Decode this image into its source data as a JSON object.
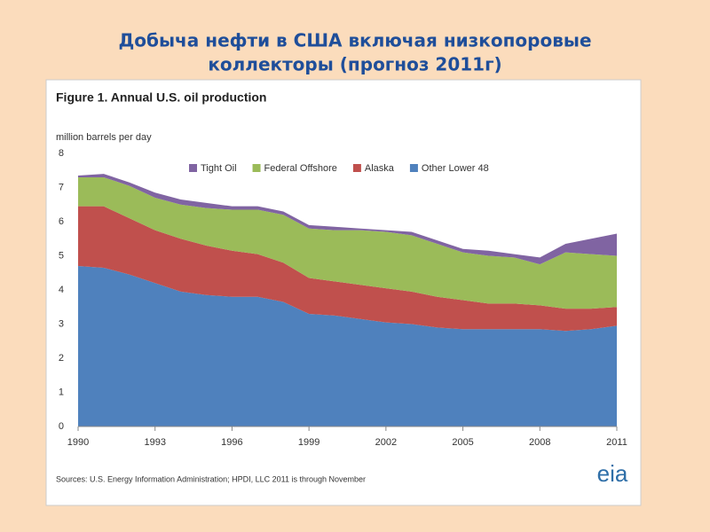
{
  "slide_title": [
    "Добыча нефти в США включая низкопоровые",
    "коллекторы (прогноз 2011г)"
  ],
  "chart_data": {
    "type": "stacked_area",
    "title": "Figure 1.  Annual U.S. oil production",
    "y_label": "million barrels per day",
    "source": "Sources:  U.S. Energy Information Administration; HPDI, LLC 2011 is through November",
    "logo": "eia",
    "x": [
      1990,
      1991,
      1992,
      1993,
      1994,
      1995,
      1996,
      1997,
      1998,
      1999,
      2000,
      2001,
      2002,
      2003,
      2004,
      2005,
      2006,
      2007,
      2008,
      2009,
      2010,
      2011
    ],
    "xlim": [
      1990,
      2011
    ],
    "xticks": [
      1990,
      1993,
      1996,
      1999,
      2002,
      2005,
      2008,
      2011
    ],
    "ylim": [
      0,
      8
    ],
    "yticks": [
      0,
      1,
      2,
      3,
      4,
      5,
      6,
      7,
      8
    ],
    "legend": "top",
    "series": [
      {
        "name": "Tight Oil",
        "color": "#8064a2",
        "values": [
          0.05,
          0.1,
          0.1,
          0.15,
          0.15,
          0.15,
          0.1,
          0.1,
          0.1,
          0.1,
          0.1,
          0.05,
          0.05,
          0.1,
          0.1,
          0.1,
          0.15,
          0.1,
          0.2,
          0.25,
          0.45,
          0.65
        ]
      },
      {
        "name": "Federal Offshore",
        "color": "#9bbb59",
        "values": [
          0.85,
          0.85,
          0.95,
          0.95,
          1.0,
          1.1,
          1.2,
          1.3,
          1.4,
          1.45,
          1.5,
          1.6,
          1.65,
          1.65,
          1.55,
          1.4,
          1.4,
          1.35,
          1.2,
          1.65,
          1.6,
          1.5
        ]
      },
      {
        "name": "Alaska",
        "color": "#c0504d",
        "values": [
          1.75,
          1.8,
          1.65,
          1.55,
          1.55,
          1.45,
          1.35,
          1.25,
          1.15,
          1.05,
          1.0,
          1.0,
          1.0,
          0.95,
          0.9,
          0.85,
          0.75,
          0.75,
          0.7,
          0.65,
          0.6,
          0.55
        ]
      },
      {
        "name": "Other Lower 48",
        "color": "#4f81bd",
        "values": [
          4.7,
          4.65,
          4.45,
          4.2,
          3.95,
          3.85,
          3.8,
          3.8,
          3.65,
          3.3,
          3.25,
          3.15,
          3.05,
          3.0,
          2.9,
          2.85,
          2.85,
          2.85,
          2.85,
          2.8,
          2.85,
          2.95
        ]
      }
    ]
  }
}
